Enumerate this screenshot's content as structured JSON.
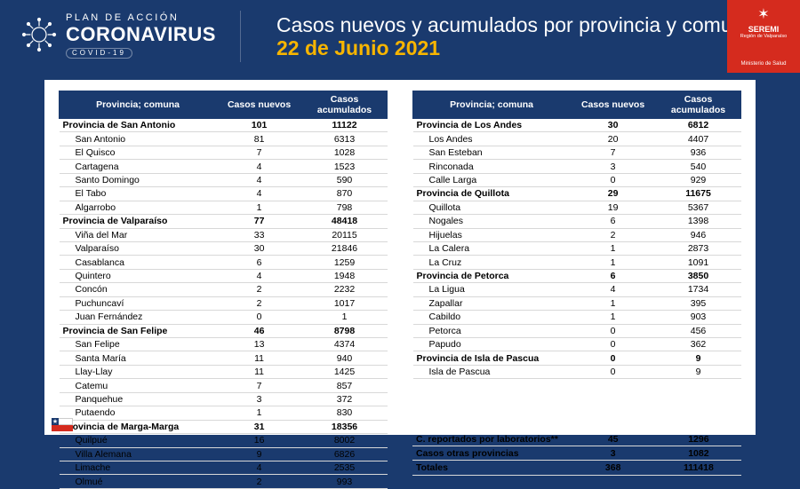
{
  "colors": {
    "background": "#1a3a6e",
    "panel": "#ffffff",
    "accent": "#f7b500",
    "badge": "#d52b1e",
    "header_text": "#ffffff",
    "table_header_bg": "#1a3a6e",
    "table_header_text": "#ffffff",
    "row_border": "#d8d8d8"
  },
  "header": {
    "plan_line": "PLAN DE ACCIÓN",
    "coronavirus": "CORONAVIRUS",
    "covid": "COVID-19",
    "title_main": "Casos nuevos y acumulados por provincia y comuna",
    "slash": "/",
    "date": "22 de Junio 2021",
    "seremi": {
      "seremi": "SEREMI",
      "region": "Región de Valparaíso",
      "ministerio": "Ministerio de Salud"
    }
  },
  "table_headers": {
    "col1": "Provincia; comuna",
    "col2": "Casos nuevos",
    "col3": "Casos acumulados"
  },
  "left_rows": [
    {
      "p": true,
      "name": "Provincia de San Antonio",
      "new": 101,
      "acc": 11122
    },
    {
      "p": false,
      "name": "San Antonio",
      "new": 81,
      "acc": 6313
    },
    {
      "p": false,
      "name": "El Quisco",
      "new": 7,
      "acc": 1028
    },
    {
      "p": false,
      "name": "Cartagena",
      "new": 4,
      "acc": 1523
    },
    {
      "p": false,
      "name": "Santo Domingo",
      "new": 4,
      "acc": 590
    },
    {
      "p": false,
      "name": "El Tabo",
      "new": 4,
      "acc": 870
    },
    {
      "p": false,
      "name": "Algarrobo",
      "new": 1,
      "acc": 798
    },
    {
      "p": true,
      "name": "Provincia de Valparaíso",
      "new": 77,
      "acc": 48418
    },
    {
      "p": false,
      "name": "Viña del Mar",
      "new": 33,
      "acc": 20115
    },
    {
      "p": false,
      "name": "Valparaíso",
      "new": 30,
      "acc": 21846
    },
    {
      "p": false,
      "name": "Casablanca",
      "new": 6,
      "acc": 1259
    },
    {
      "p": false,
      "name": "Quintero",
      "new": 4,
      "acc": 1948
    },
    {
      "p": false,
      "name": "Concón",
      "new": 2,
      "acc": 2232
    },
    {
      "p": false,
      "name": "Puchuncaví",
      "new": 2,
      "acc": 1017
    },
    {
      "p": false,
      "name": "Juan Fernández",
      "new": 0,
      "acc": 1
    },
    {
      "p": true,
      "name": "Provincia de San Felipe",
      "new": 46,
      "acc": 8798
    },
    {
      "p": false,
      "name": "San Felipe",
      "new": 13,
      "acc": 4374
    },
    {
      "p": false,
      "name": "Santa María",
      "new": 11,
      "acc": 940
    },
    {
      "p": false,
      "name": "Llay-Llay",
      "new": 11,
      "acc": 1425
    },
    {
      "p": false,
      "name": "Catemu",
      "new": 7,
      "acc": 857
    },
    {
      "p": false,
      "name": "Panquehue",
      "new": 3,
      "acc": 372
    },
    {
      "p": false,
      "name": "Putaendo",
      "new": 1,
      "acc": 830
    },
    {
      "p": true,
      "name": "Provincia de Marga-Marga",
      "new": 31,
      "acc": 18356
    },
    {
      "p": false,
      "name": "Quilpué",
      "new": 16,
      "acc": 8002
    },
    {
      "p": false,
      "name": "Villa Alemana",
      "new": 9,
      "acc": 6826
    },
    {
      "p": false,
      "name": "Limache",
      "new": 4,
      "acc": 2535
    },
    {
      "p": false,
      "name": "Olmué",
      "new": 2,
      "acc": 993
    }
  ],
  "right_rows": [
    {
      "p": true,
      "name": "Provincia de Los Andes",
      "new": 30,
      "acc": 6812
    },
    {
      "p": false,
      "name": "Los Andes",
      "new": 20,
      "acc": 4407
    },
    {
      "p": false,
      "name": "San Esteban",
      "new": 7,
      "acc": 936
    },
    {
      "p": false,
      "name": "Rinconada",
      "new": 3,
      "acc": 540
    },
    {
      "p": false,
      "name": "Calle Larga",
      "new": 0,
      "acc": 929
    },
    {
      "p": true,
      "name": "Provincia de Quillota",
      "new": 29,
      "acc": 11675
    },
    {
      "p": false,
      "name": "Quillota",
      "new": 19,
      "acc": 5367
    },
    {
      "p": false,
      "name": "Nogales",
      "new": 6,
      "acc": 1398
    },
    {
      "p": false,
      "name": "Hijuelas",
      "new": 2,
      "acc": 946
    },
    {
      "p": false,
      "name": "La Calera",
      "new": 1,
      "acc": 2873
    },
    {
      "p": false,
      "name": "La Cruz",
      "new": 1,
      "acc": 1091
    },
    {
      "p": true,
      "name": "Provincia de Petorca",
      "new": 6,
      "acc": 3850
    },
    {
      "p": false,
      "name": "La Ligua",
      "new": 4,
      "acc": 1734
    },
    {
      "p": false,
      "name": "Zapallar",
      "new": 1,
      "acc": 395
    },
    {
      "p": false,
      "name": "Cabildo",
      "new": 1,
      "acc": 903
    },
    {
      "p": false,
      "name": "Petorca",
      "new": 0,
      "acc": 456
    },
    {
      "p": false,
      "name": "Papudo",
      "new": 0,
      "acc": 362
    },
    {
      "p": true,
      "name": "Provincia de Isla de Pascua",
      "new": 0,
      "acc": 9
    },
    {
      "p": false,
      "name": "Isla de Pascua",
      "new": 0,
      "acc": 9
    }
  ],
  "summary_rows": [
    {
      "name": "C. reportados por laboratorios**",
      "new": 45,
      "acc": 1296
    },
    {
      "name": "Casos otras provincias",
      "new": 3,
      "acc": 1082
    },
    {
      "name": "Totales",
      "new": 368,
      "acc": 111418
    }
  ]
}
